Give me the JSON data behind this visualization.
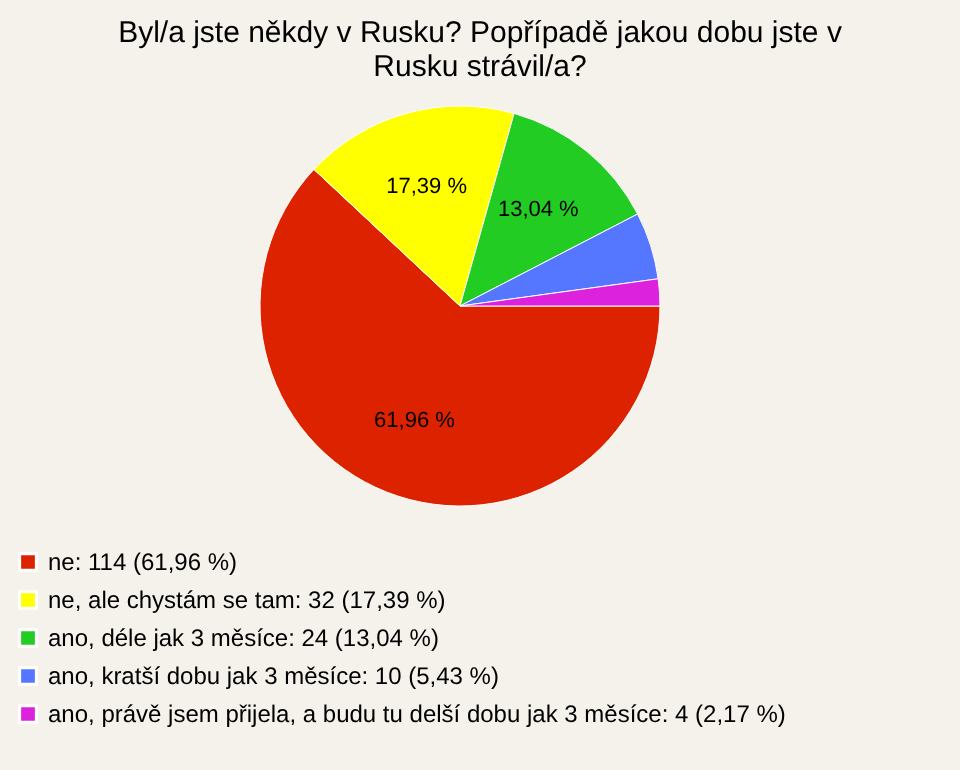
{
  "chart_data": {
    "type": "pie",
    "title": "Byl/a jste někdy v Rusku? Popřípadě jakou dobu jste v Rusku strávil/a?",
    "categories": [
      "ne: 114 (61,96 %)",
      "ne, ale chystám se tam: 32 (17,39 %)",
      "ano, déle jak 3 měsíce: 24 (13,04 %)",
      "ano, kratší dobu jak 3 měsíce: 10 (5,43 %)",
      "ano, právě jsem přijela, a budu tu delší dobu jak 3 měsíce: 4 (2,17 %)"
    ],
    "values": [
      61.96,
      17.39,
      13.04,
      5.43,
      2.17
    ],
    "colors": [
      "#dd2200",
      "#ffff00",
      "#22cc22",
      "#5577ff",
      "#dd22dd"
    ],
    "value_labels": [
      "61,96 %",
      "17,39 %",
      "13,04 %",
      null,
      null
    ],
    "legend": "bottom left"
  }
}
